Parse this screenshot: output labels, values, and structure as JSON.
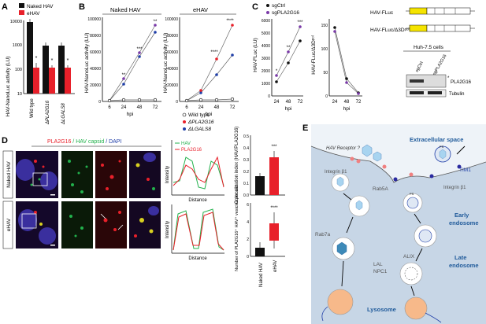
{
  "panel_labels": {
    "a": "A",
    "b": "B",
    "c": "C",
    "d": "D",
    "e": "E"
  },
  "colors": {
    "black": "#111111",
    "red": "#e8202a",
    "purple": "#7a3aa8",
    "blue": "#1f3ea8",
    "green": "#22b14c",
    "grey": "#9a9a9a",
    "yellow": "#f5e400",
    "bg_blue": "#c7d6e6"
  },
  "panel_a": {
    "ylabel": "HAV-NanoLuc activity (LU)",
    "legend": [
      "Naked HAV",
      "eHAV"
    ],
    "ytick_labels": [
      "10",
      "100",
      "1000",
      "10000"
    ],
    "sig": [
      "*",
      "*",
      "*"
    ]
  },
  "panel_b": {
    "titles": [
      "Naked HAV",
      "eHAV"
    ],
    "ylabel": "HAV-NanoLuc activity (LU)",
    "xlabel": "hpi",
    "xtick_labels": [
      "6",
      "24",
      "48",
      "72"
    ],
    "ytick_labels": [
      "0",
      "20000",
      "40000",
      "60000",
      "80000",
      "100000"
    ],
    "legend": [
      "Wild type",
      "ΔPLA2G16",
      "ΔLGALS8"
    ],
    "sig_naked": [
      "**",
      "***",
      "**"
    ],
    "sig_ehav": [
      "****",
      "****"
    ]
  },
  "panel_c": {
    "legend": [
      "sgCtrl",
      "sgPLA2G16"
    ],
    "ylabel1": "HAV-FLuc (LU)",
    "ylabel2": "HAV-FLuc/Δ3Dᵖᵒˡ",
    "xlabel": "hpi",
    "xtick_labels": [
      "24",
      "48",
      "72"
    ],
    "ytick_labels1": [
      "0",
      "1000",
      "2000",
      "3000",
      "4000",
      "5000",
      "6000"
    ],
    "ytick_labels2": [
      "0",
      "50",
      "100",
      "150"
    ],
    "sig": [
      "*",
      "**",
      "***"
    ],
    "constructs": [
      "HAV-FLuc",
      "HAV-FLuc/Δ3Dᵖᵒˡ"
    ],
    "cell_line": "Huh-7.5 cells",
    "blot_lanes": [
      "sgCtrl",
      "sgPLA2G16"
    ],
    "blot_labels": [
      "PLA2G16",
      "Tubulin"
    ],
    "blot_star": "*"
  },
  "panel_d": {
    "title_parts": [
      "PLA2G16",
      " / HAV capsid",
      " / DAPI"
    ],
    "row_labels": [
      "Naked HAV",
      "eHAV"
    ],
    "legend": [
      "HAV",
      "PLA2G16"
    ],
    "intensity_label": "Intensity",
    "distance_label": "Distance",
    "coloc_ylabel": "Colocalization index (HAV/PLA2G16)",
    "coloc_ticks": [
      "0.0",
      "0.1",
      "0.2",
      "0.3",
      "0.4",
      "0.5"
    ],
    "ves_ylabel": "Number of PLA2G16⁺ HAV⁺ vesicles per cell",
    "ves_ticks": [
      "0",
      "2",
      "4",
      "6"
    ],
    "sig_top": "***",
    "sig_bottom": "****",
    "x_labels": [
      "Naked HAV",
      "eHAV"
    ]
  },
  "panel_e": {
    "extracellular": "Extracellular space",
    "receptor": "HAV Receptor ?",
    "integrin1": "Integrin β1",
    "integrin2": "Integrin β1",
    "tim1": "TIM1",
    "rab5a": "Rab5A",
    "early": "Early",
    "endosome1": "endosome",
    "rab7a": "Rab7a",
    "late": "Late",
    "endosome2": "endosome",
    "alix": "ALIX",
    "lal": "LAL",
    "npc1": "NPC1",
    "lysosome": "Lysosome",
    "ps1": "PS",
    "ps2": "PS"
  }
}
